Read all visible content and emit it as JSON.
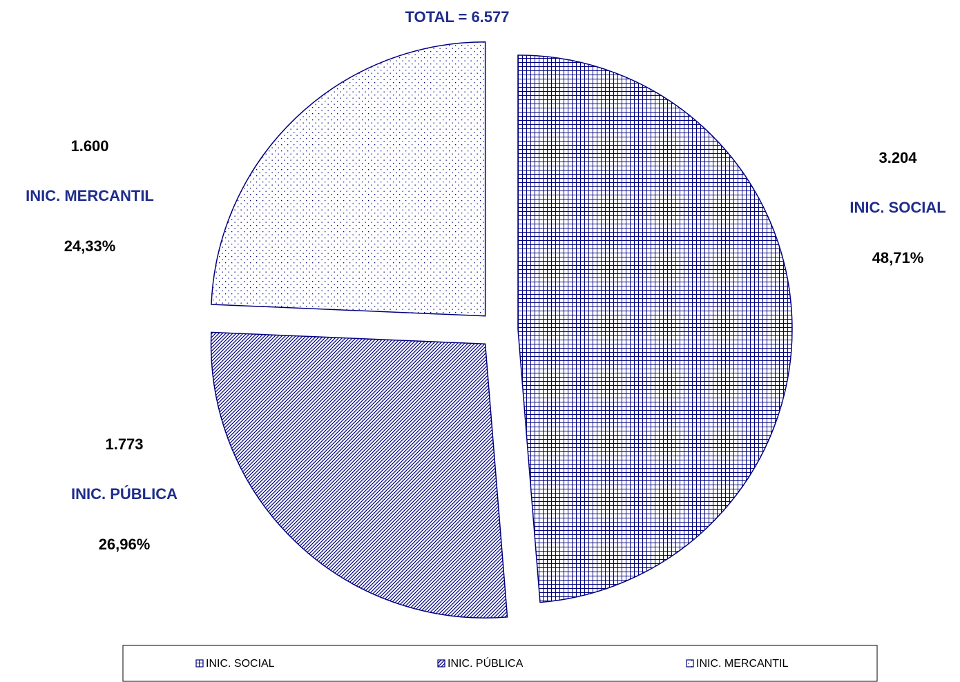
{
  "chart_data": {
    "type": "pie",
    "title": "TOTAL = 6.577",
    "categories": [
      "INIC. SOCIAL",
      "INIC. PÚBLICA",
      "INIC. MERCANTIL"
    ],
    "values": [
      3204,
      1773,
      1600
    ],
    "value_labels": [
      "3.204",
      "1.773",
      "1.600"
    ],
    "percents": [
      48.71,
      26.96,
      24.33
    ],
    "percent_labels": [
      "48,71%",
      "26,96%",
      "24,33%"
    ],
    "color": "#000080",
    "patterns": [
      "grid",
      "diagonal",
      "dots"
    ],
    "legend": "bottom"
  }
}
